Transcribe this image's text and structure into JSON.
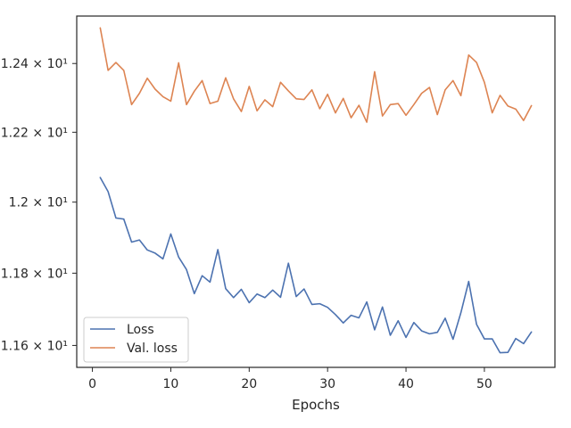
{
  "chart_data": {
    "type": "line",
    "xlabel": "Epochs",
    "ylabel": "",
    "title": "",
    "y_scale": "log",
    "xlim": [
      -2.0,
      59.0
    ],
    "ylim": [
      11.54,
      12.54
    ],
    "x_ticks": [
      0,
      10,
      20,
      30,
      40,
      50
    ],
    "x_tick_labels": [
      "0",
      "10",
      "20",
      "30",
      "40",
      "50"
    ],
    "y_ticks": [
      11.6,
      11.8,
      12.0,
      12.2,
      12.4
    ],
    "y_tick_labels": [
      "1.16 × 10¹",
      "1.18 × 10¹",
      "1.2 × 10¹",
      "1.22 × 10¹",
      "1.24 × 10¹"
    ],
    "legend_position": "lower-left",
    "grid": false,
    "x": [
      1,
      2,
      3,
      4,
      5,
      6,
      7,
      8,
      9,
      10,
      11,
      12,
      13,
      14,
      15,
      16,
      17,
      18,
      19,
      20,
      21,
      22,
      23,
      24,
      25,
      26,
      27,
      28,
      29,
      30,
      31,
      32,
      33,
      34,
      35,
      36,
      37,
      38,
      39,
      40,
      41,
      42,
      43,
      44,
      45,
      46,
      47,
      48,
      49,
      50,
      51,
      52,
      53,
      54,
      55,
      56
    ],
    "series": [
      {
        "name": "Loss",
        "color": "#4c72b0",
        "values": [
          12.07,
          12.03,
          11.955,
          11.952,
          11.887,
          11.893,
          11.865,
          11.856,
          11.84,
          11.91,
          11.845,
          11.81,
          11.743,
          11.793,
          11.775,
          11.866,
          11.757,
          11.732,
          11.755,
          11.718,
          11.742,
          11.732,
          11.753,
          11.733,
          11.828,
          11.735,
          11.756,
          11.713,
          11.715,
          11.705,
          11.685,
          11.662,
          11.683,
          11.676,
          11.72,
          11.643,
          11.706,
          11.628,
          11.668,
          11.622,
          11.663,
          11.64,
          11.632,
          11.636,
          11.675,
          11.617,
          11.69,
          11.777,
          11.658,
          11.618,
          11.618,
          11.58,
          11.581,
          11.619,
          11.605,
          11.637
        ]
      },
      {
        "name": "Val. loss",
        "color": "#dd8452",
        "values": [
          12.505,
          12.38,
          12.403,
          12.38,
          12.28,
          12.313,
          12.357,
          12.325,
          12.303,
          12.29,
          12.402,
          12.28,
          12.319,
          12.35,
          12.283,
          12.29,
          12.358,
          12.297,
          12.26,
          12.333,
          12.262,
          12.294,
          12.274,
          12.345,
          12.32,
          12.297,
          12.295,
          12.323,
          12.268,
          12.31,
          12.256,
          12.298,
          12.242,
          12.278,
          12.229,
          12.376,
          12.247,
          12.28,
          12.283,
          12.249,
          12.28,
          12.313,
          12.33,
          12.251,
          12.323,
          12.35,
          12.306,
          12.425,
          12.403,
          12.345,
          12.256,
          12.307,
          12.276,
          12.267,
          12.234,
          12.277
        ]
      }
    ]
  }
}
